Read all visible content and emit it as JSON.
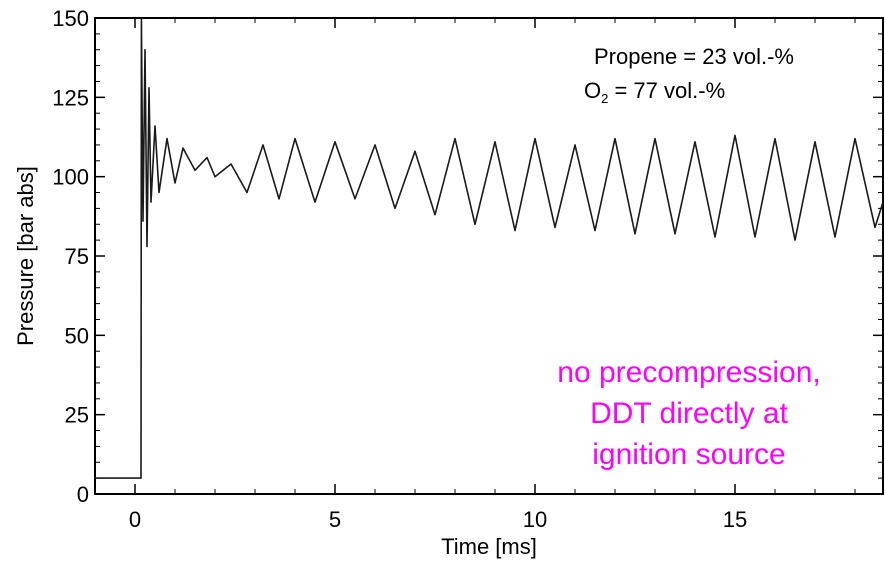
{
  "chart_data": {
    "type": "line",
    "xlabel": "Time [ms]",
    "ylabel": "Pressure [bar abs]",
    "xlim": [
      -1,
      18.7
    ],
    "ylim": [
      0,
      150
    ],
    "xticks": [
      0,
      5,
      10,
      15
    ],
    "yticks": [
      0,
      25,
      50,
      75,
      100,
      125,
      150
    ],
    "xtick_labels": [
      "0",
      "5",
      "10",
      "15"
    ],
    "ytick_labels": [
      "0",
      "25",
      "50",
      "75",
      "100",
      "125",
      "150"
    ],
    "grid": false,
    "line_color": "#1a1a1a",
    "annotation": {
      "line1": "Propene = 23 vol.-%",
      "line2_prefix": "O",
      "line2_sub": "2",
      "line2_suffix": " = 77 vol.-%"
    },
    "note": {
      "lines": [
        "no precompression,",
        "DDT directly at",
        "ignition source"
      ],
      "color": "#ff00ff"
    },
    "series": [
      {
        "x": [
          -1.0,
          -0.5,
          0.0,
          0.15,
          0.16,
          0.2,
          0.25,
          0.3,
          0.35,
          0.4,
          0.5,
          0.6,
          0.8,
          1.0,
          1.2,
          1.5,
          1.8,
          2.0,
          2.4,
          2.8,
          3.2,
          3.6,
          4.0,
          4.5,
          5.0,
          5.5,
          6.0,
          6.5,
          7.0,
          7.5,
          8.0,
          8.5,
          9.0,
          9.5,
          10.0,
          10.5,
          11.0,
          11.5,
          12.0,
          12.5,
          13.0,
          13.5,
          14.0,
          14.5,
          15.0,
          15.5,
          16.0,
          16.5,
          17.0,
          17.5,
          18.0,
          18.5,
          18.7
        ],
        "y": [
          5,
          5,
          5,
          5,
          150,
          86,
          140,
          78,
          128,
          92,
          116,
          95,
          112,
          98,
          109,
          102,
          106,
          100,
          104,
          95,
          110,
          93,
          112,
          92,
          111,
          93,
          110,
          90,
          108,
          88,
          112,
          85,
          111,
          83,
          112,
          84,
          110,
          83,
          112,
          82,
          112,
          82,
          111,
          81,
          113,
          81,
          112,
          80,
          111,
          81,
          112,
          84,
          92
        ]
      }
    ]
  }
}
